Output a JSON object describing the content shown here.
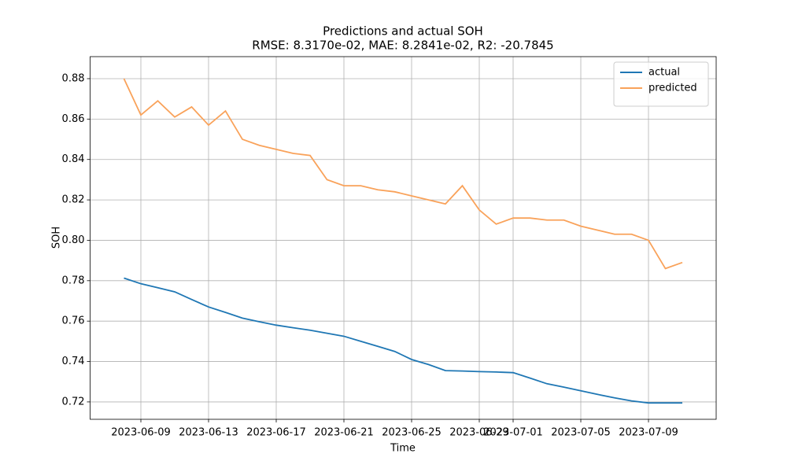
{
  "chart_data": {
    "type": "line",
    "title": "Predictions and actual SOH",
    "subtitle": "RMSE: 8.3170e-02, MAE: 8.2841e-02, R2: -20.7845",
    "x_label": "Time",
    "y_label": "SOH",
    "x": [
      "2023-06-08",
      "2023-06-09",
      "2023-06-10",
      "2023-06-11",
      "2023-06-12",
      "2023-06-13",
      "2023-06-14",
      "2023-06-15",
      "2023-06-16",
      "2023-06-17",
      "2023-06-18",
      "2023-06-19",
      "2023-06-20",
      "2023-06-21",
      "2023-06-22",
      "2023-06-23",
      "2023-06-24",
      "2023-06-25",
      "2023-06-26",
      "2023-06-27",
      "2023-06-28",
      "2023-06-29",
      "2023-06-30",
      "2023-07-01",
      "2023-07-02",
      "2023-07-03",
      "2023-07-04",
      "2023-07-05",
      "2023-07-06",
      "2023-07-07",
      "2023-07-08",
      "2023-07-09",
      "2023-07-10",
      "2023-07-11"
    ],
    "series": [
      {
        "name": "actual",
        "color": "#1f77b4",
        "values": [
          0.7813,
          0.7785,
          0.7765,
          0.7745,
          0.7707,
          0.767,
          0.7643,
          0.7615,
          0.7597,
          0.758,
          0.7567,
          0.7555,
          0.754,
          0.7525,
          0.75,
          0.7475,
          0.745,
          0.741,
          0.7385,
          0.7355,
          0.7353,
          0.735,
          0.7348,
          0.7345,
          0.7318,
          0.729,
          0.7273,
          0.7255,
          0.7237,
          0.722,
          0.7205,
          0.7195,
          0.7195,
          0.7195
        ]
      },
      {
        "name": "predicted",
        "color": "#f9a25a",
        "values": [
          0.88,
          0.862,
          0.869,
          0.861,
          0.866,
          0.857,
          0.864,
          0.85,
          0.847,
          0.845,
          0.843,
          0.842,
          0.83,
          0.827,
          0.827,
          0.825,
          0.824,
          0.822,
          0.82,
          0.818,
          0.827,
          0.815,
          0.808,
          0.811,
          0.811,
          0.81,
          0.81,
          0.807,
          0.805,
          0.803,
          0.803,
          0.8,
          0.786,
          0.789
        ]
      }
    ],
    "xlim": [
      "2023-06-06",
      "2023-07-13"
    ],
    "xticks": [
      "2023-06-09",
      "2023-06-13",
      "2023-06-17",
      "2023-06-21",
      "2023-06-25",
      "2023-06-29",
      "2023-07-01",
      "2023-07-05",
      "2023-07-09"
    ],
    "ylim": [
      0.7114,
      0.8909
    ],
    "yticks": [
      {
        "value": 0.72,
        "label": "0.72"
      },
      {
        "value": 0.74,
        "label": "0.74"
      },
      {
        "value": 0.76,
        "label": "0.76"
      },
      {
        "value": 0.78,
        "label": "0.78"
      },
      {
        "value": 0.8,
        "label": "0.80"
      },
      {
        "value": 0.82,
        "label": "0.82"
      },
      {
        "value": 0.84,
        "label": "0.84"
      },
      {
        "value": 0.86,
        "label": "0.86"
      },
      {
        "value": 0.88,
        "label": "0.88"
      }
    ],
    "grid": true,
    "legend": "upper right"
  }
}
